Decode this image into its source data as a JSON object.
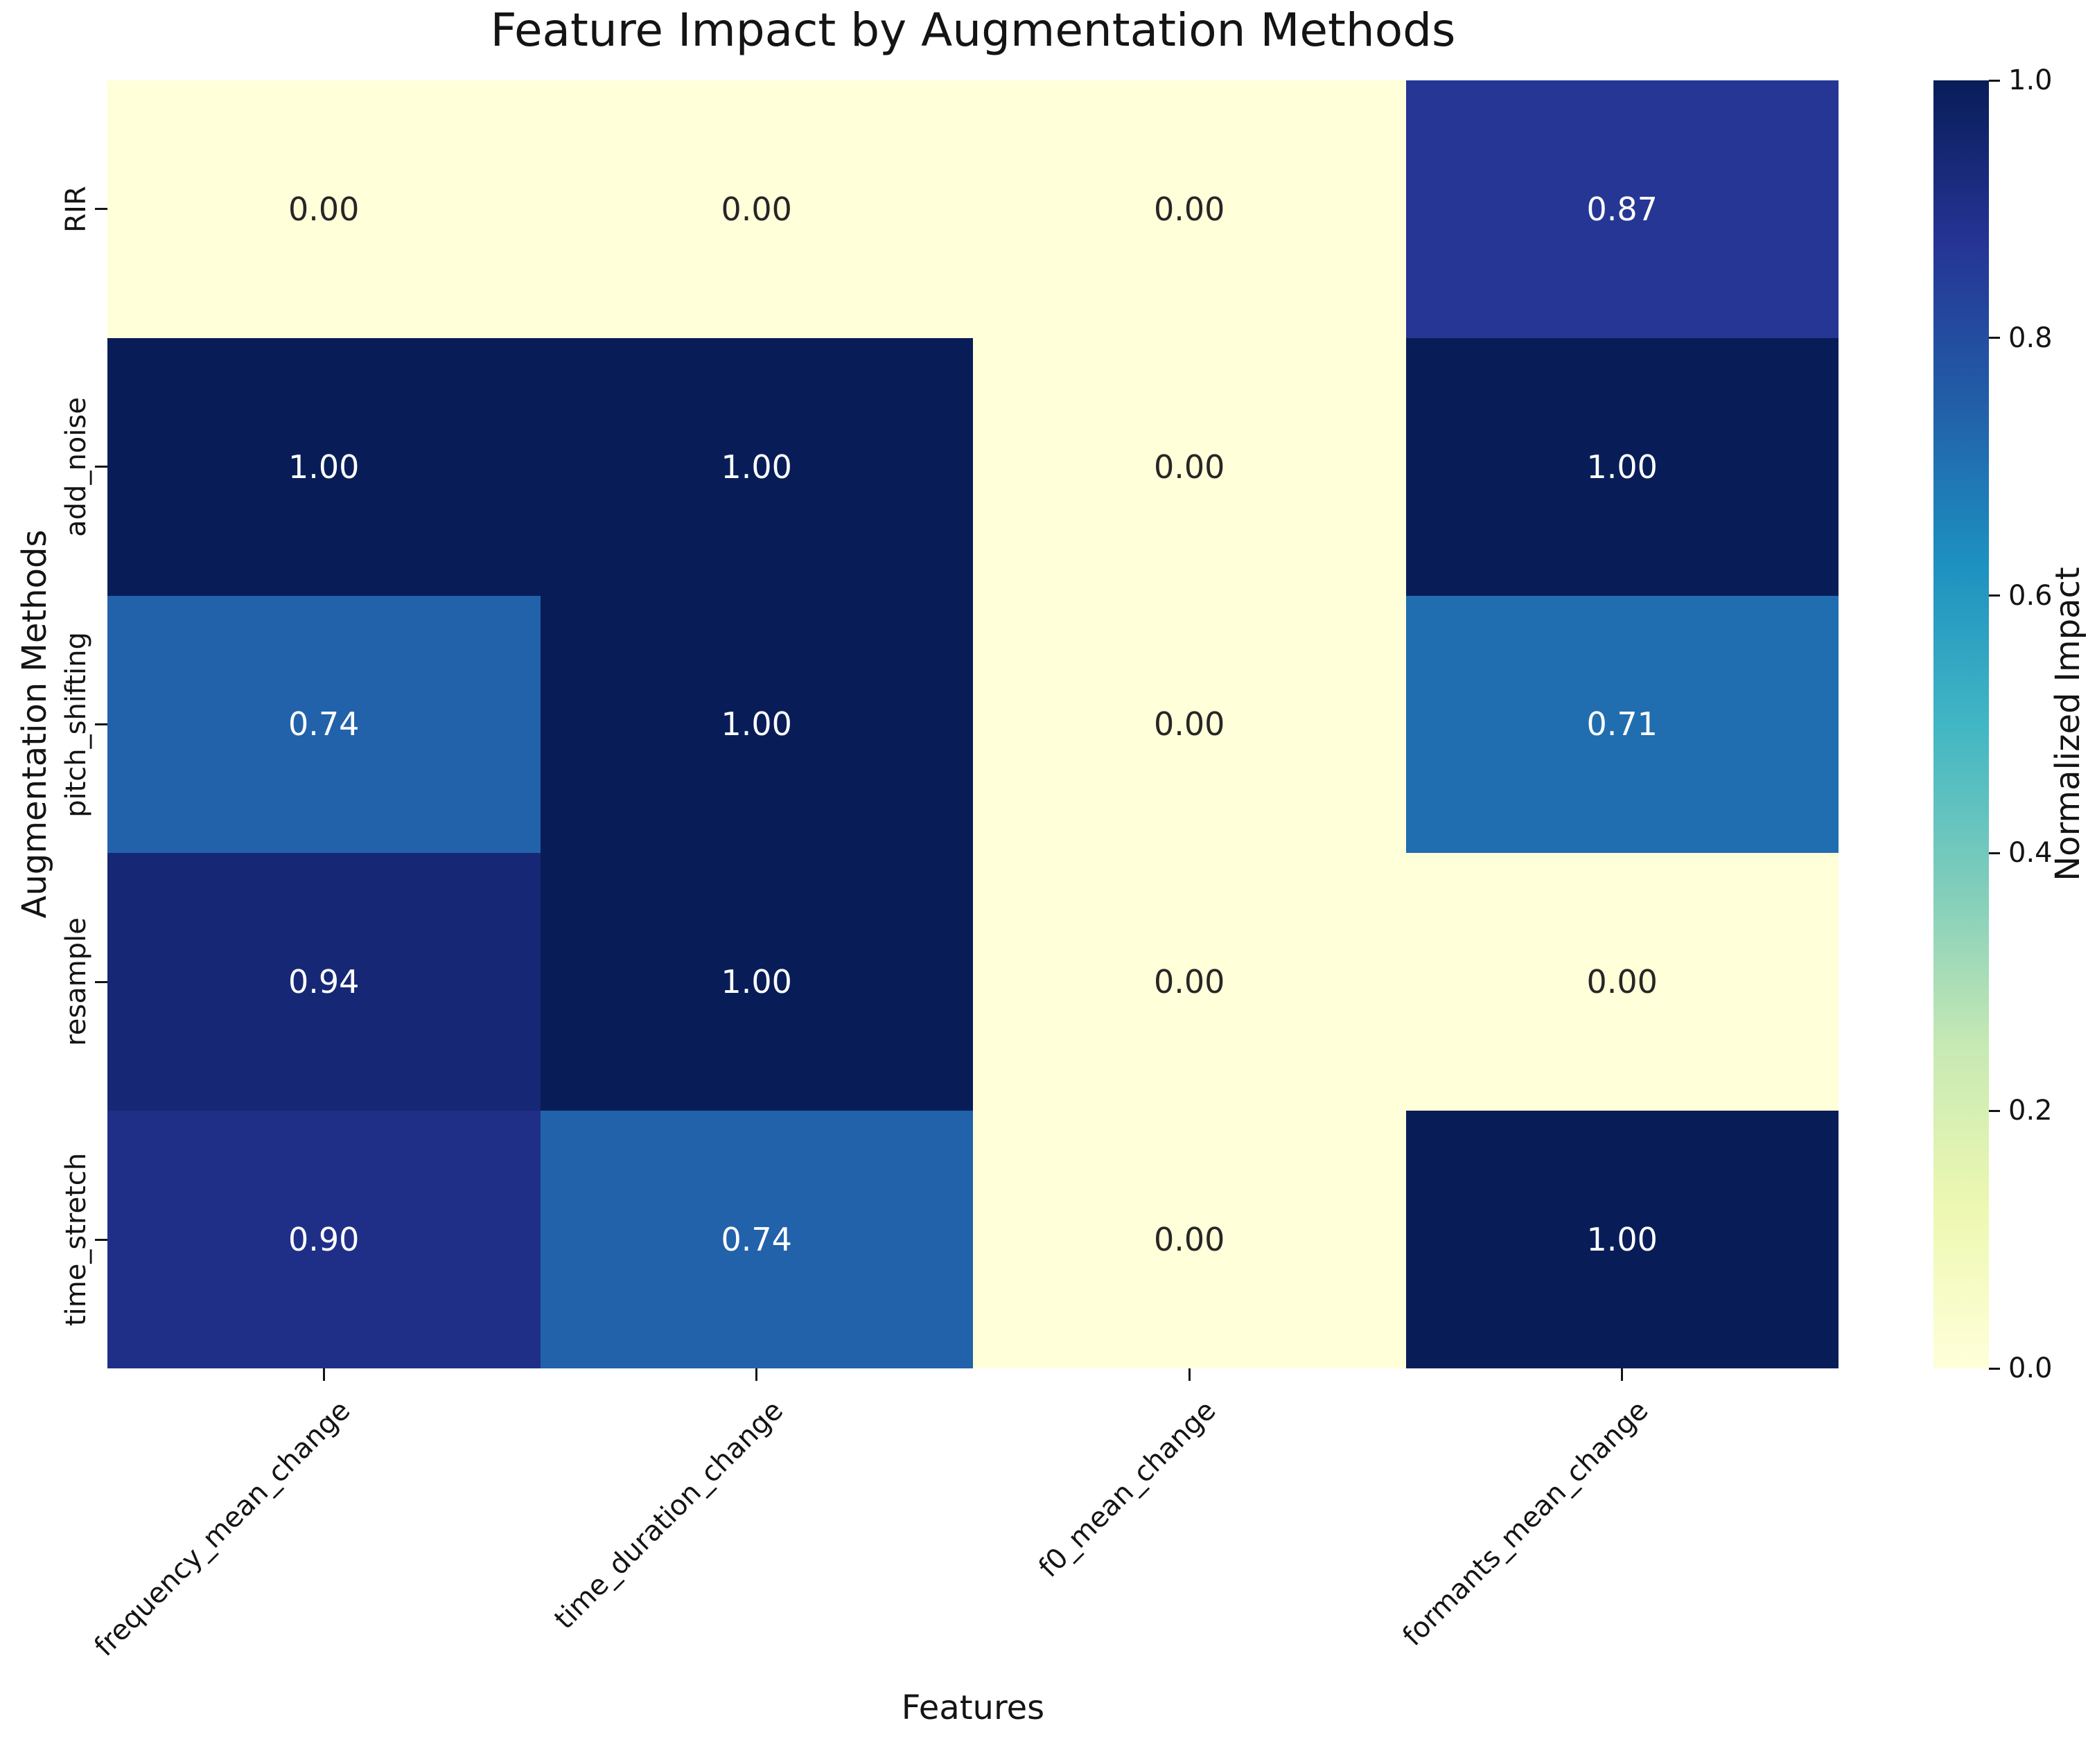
{
  "figure": {
    "background": "#ffffff"
  },
  "chart_data": {
    "type": "heatmap",
    "title": "Feature Impact by Augmentation Methods",
    "xlabel": "Features",
    "ylabel": "Augmentation Methods",
    "colorbar_label": "Normalized Impact",
    "x_categories": [
      "frequency_mean_change",
      "time_duration_change",
      "f0_mean_change",
      "formants_mean_change"
    ],
    "y_categories": [
      "RIR",
      "add_noise",
      "pitch_shifting",
      "resample",
      "time_stretch"
    ],
    "values": [
      [
        0.0,
        0.0,
        0.0,
        0.87
      ],
      [
        1.0,
        1.0,
        0.0,
        1.0
      ],
      [
        0.74,
        1.0,
        0.0,
        0.71
      ],
      [
        0.94,
        1.0,
        0.0,
        0.0
      ],
      [
        0.9,
        0.74,
        0.0,
        1.0
      ]
    ],
    "cell_labels": [
      [
        "0.00",
        "0.00",
        "0.00",
        "0.87"
      ],
      [
        "1.00",
        "1.00",
        "0.00",
        "1.00"
      ],
      [
        "0.74",
        "1.00",
        "0.00",
        "0.71"
      ],
      [
        "0.94",
        "1.00",
        "0.00",
        "0.00"
      ],
      [
        "0.90",
        "0.74",
        "0.00",
        "1.00"
      ]
    ],
    "vmin": 0.0,
    "vmax": 1.0,
    "grid": false,
    "legend_position": "colorbar-right",
    "colorbar_ticks": [
      {
        "label": "1.0",
        "value": 1.0
      },
      {
        "label": "0.8",
        "value": 0.8
      },
      {
        "label": "0.6",
        "value": 0.6
      },
      {
        "label": "0.4",
        "value": 0.4
      },
      {
        "label": "0.2",
        "value": 0.2
      },
      {
        "label": "0.0",
        "value": 0.0
      }
    ],
    "colormap": {
      "name": "YlGnBu",
      "stops": [
        {
          "pos": 0.0,
          "color": "#ffffd9"
        },
        {
          "pos": 0.125,
          "color": "#edf8b1"
        },
        {
          "pos": 0.25,
          "color": "#c7e9b4"
        },
        {
          "pos": 0.375,
          "color": "#7fcdbb"
        },
        {
          "pos": 0.5,
          "color": "#41b6c4"
        },
        {
          "pos": 0.625,
          "color": "#1d91c0"
        },
        {
          "pos": 0.75,
          "color": "#225ea8"
        },
        {
          "pos": 0.875,
          "color": "#253494"
        },
        {
          "pos": 1.0,
          "color": "#081d58"
        }
      ]
    },
    "annotation_text_colors": {
      "light_bg": "#262626",
      "dark_bg": "#ffffff"
    },
    "axis_text_color": "#141414"
  }
}
